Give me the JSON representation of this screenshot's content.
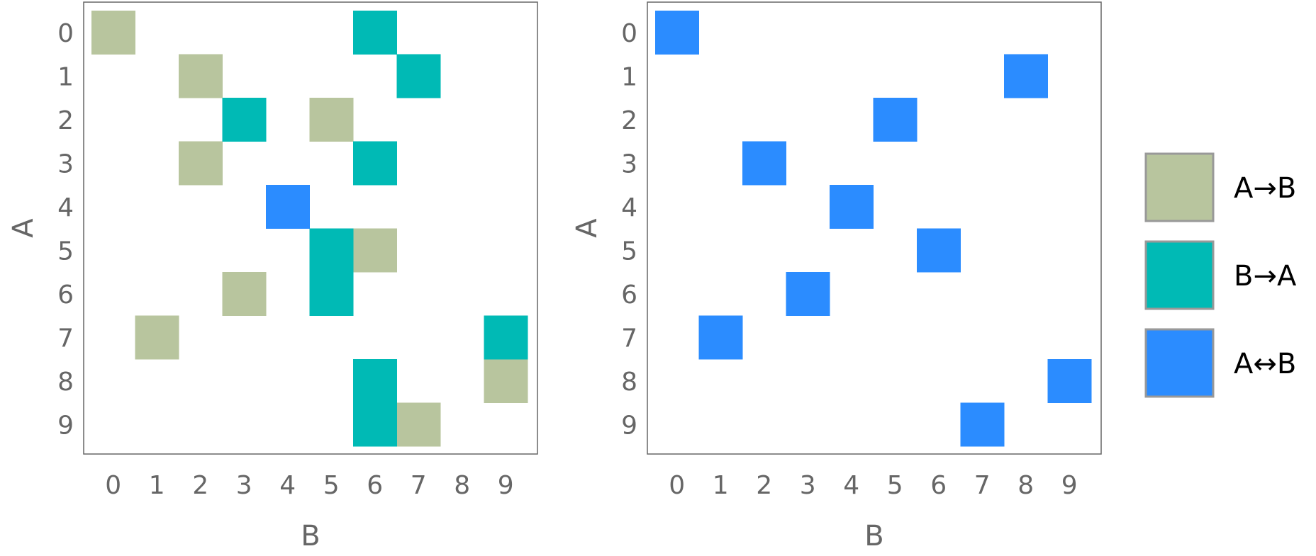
{
  "chart_data": [
    {
      "type": "heatmap",
      "xlabel": "B",
      "ylabel": "A",
      "x_categories": [
        "0",
        "1",
        "2",
        "3",
        "4",
        "5",
        "6",
        "7",
        "8",
        "9"
      ],
      "y_categories": [
        "0",
        "1",
        "2",
        "3",
        "4",
        "5",
        "6",
        "7",
        "8",
        "9"
      ],
      "cells": [
        {
          "a": 0,
          "b": 0,
          "kind": "A→B"
        },
        {
          "a": 1,
          "b": 2,
          "kind": "A→B"
        },
        {
          "a": 2,
          "b": 5,
          "kind": "A→B"
        },
        {
          "a": 3,
          "b": 2,
          "kind": "A→B"
        },
        {
          "a": 5,
          "b": 6,
          "kind": "A→B"
        },
        {
          "a": 6,
          "b": 3,
          "kind": "A→B"
        },
        {
          "a": 7,
          "b": 1,
          "kind": "A→B"
        },
        {
          "a": 8,
          "b": 9,
          "kind": "A→B"
        },
        {
          "a": 9,
          "b": 7,
          "kind": "A→B"
        },
        {
          "a": 0,
          "b": 6,
          "kind": "B→A"
        },
        {
          "a": 1,
          "b": 7,
          "kind": "B→A"
        },
        {
          "a": 2,
          "b": 3,
          "kind": "B→A"
        },
        {
          "a": 3,
          "b": 6,
          "kind": "B→A"
        },
        {
          "a": 5,
          "b": 5,
          "kind": "B→A"
        },
        {
          "a": 6,
          "b": 5,
          "kind": "B→A"
        },
        {
          "a": 7,
          "b": 9,
          "kind": "B→A"
        },
        {
          "a": 8,
          "b": 6,
          "kind": "B→A"
        },
        {
          "a": 9,
          "b": 6,
          "kind": "B→A"
        },
        {
          "a": 4,
          "b": 4,
          "kind": "A↔B"
        }
      ]
    },
    {
      "type": "heatmap",
      "xlabel": "B",
      "ylabel": "A",
      "x_categories": [
        "0",
        "1",
        "2",
        "3",
        "4",
        "5",
        "6",
        "7",
        "8",
        "9"
      ],
      "y_categories": [
        "0",
        "1",
        "2",
        "3",
        "4",
        "5",
        "6",
        "7",
        "8",
        "9"
      ],
      "cells": [
        {
          "a": 0,
          "b": 0,
          "kind": "A↔B"
        },
        {
          "a": 1,
          "b": 8,
          "kind": "A↔B"
        },
        {
          "a": 2,
          "b": 5,
          "kind": "A↔B"
        },
        {
          "a": 3,
          "b": 2,
          "kind": "A↔B"
        },
        {
          "a": 4,
          "b": 4,
          "kind": "A↔B"
        },
        {
          "a": 5,
          "b": 6,
          "kind": "A↔B"
        },
        {
          "a": 6,
          "b": 3,
          "kind": "A↔B"
        },
        {
          "a": 7,
          "b": 1,
          "kind": "A↔B"
        },
        {
          "a": 8,
          "b": 9,
          "kind": "A↔B"
        },
        {
          "a": 9,
          "b": 7,
          "kind": "A↔B"
        }
      ]
    }
  ],
  "legend": {
    "placement": "right",
    "items": [
      {
        "label": "A→B",
        "color": "#b8c59e"
      },
      {
        "label": "B→A",
        "color": "#00bab5"
      },
      {
        "label": "A↔B",
        "color": "#2b8cff"
      }
    ]
  },
  "colors": {
    "frame": "#666666",
    "legend_border": "#999999"
  }
}
